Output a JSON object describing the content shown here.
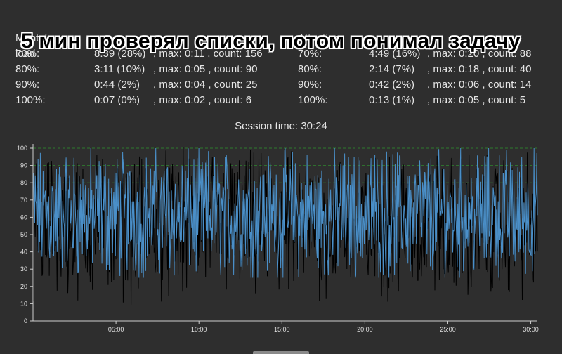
{
  "overlay_caption": "5 мин проверял списки, потом понимал задачу",
  "stats_left": {
    "header": [
      "Mental load",
      ""
    ],
    "rows": [
      {
        "pct": "70%:",
        "time": "8:39 (28%)",
        "rest": ", max: 0:11 , count: 156"
      },
      {
        "pct": "80%:",
        "time": "3:11 (10%)",
        "rest": ", max: 0:05 , count: 90"
      },
      {
        "pct": "90%:",
        "time": "0:44 (2%)",
        "rest": ", max: 0:04 , count: 25"
      },
      {
        "pct": "100%:",
        "time": "0:07 (0%)",
        "rest": ", max: 0:02 , count: 6"
      }
    ]
  },
  "stats_right": {
    "header": [
      "Attention",
      ""
    ],
    "rows": [
      {
        "pct": "70%:",
        "time": "4:49 (16%)",
        "rest": ", max: 0:20 , count: 88"
      },
      {
        "pct": "80%:",
        "time": "2:14 (7%)",
        "rest": ", max: 0:18 , count: 40"
      },
      {
        "pct": "90%:",
        "time": "0:42 (2%)",
        "rest": ", max: 0:06 , count: 14"
      },
      {
        "pct": "100%:",
        "time": "0:13 (1%)",
        "rest": ", max: 0:05 , count: 5"
      }
    ]
  },
  "session_time": "Session time: 30:24",
  "colors": {
    "background": "#2e2e2e",
    "series_attention": "#4a8fc8",
    "series_mental": "#000000",
    "threshold_lines": "#2f7a2f",
    "axis": "#cfcfcf"
  },
  "chart_data": {
    "type": "line",
    "xlabel": "",
    "ylabel": "",
    "ylim": [
      0,
      100
    ],
    "xlim_seconds": [
      0,
      1824
    ],
    "x_tick_labels": [
      "05:00",
      "10:00",
      "15:00",
      "20:00",
      "25:00",
      "30:00"
    ],
    "x_tick_seconds": [
      300,
      600,
      900,
      1200,
      1500,
      1800
    ],
    "y_tick_labels": [
      "0",
      "10",
      "20",
      "30",
      "40",
      "50",
      "60",
      "70",
      "80",
      "90",
      "100"
    ],
    "y_ticks": [
      0,
      10,
      20,
      30,
      40,
      50,
      60,
      70,
      80,
      90,
      100
    ],
    "threshold_lines": [
      80,
      90,
      100
    ],
    "grid": false,
    "series": [
      {
        "name": "",
        "color": "#4a8fc8",
        "values_description": "noisy signal mostly between 30 and 100, sampled once per second"
      },
      {
        "name": "",
        "color": "#000000",
        "values_description": "noisy signal mostly between 20 and 100, sampled once per second"
      }
    ],
    "sample_rate_hz": 1
  }
}
